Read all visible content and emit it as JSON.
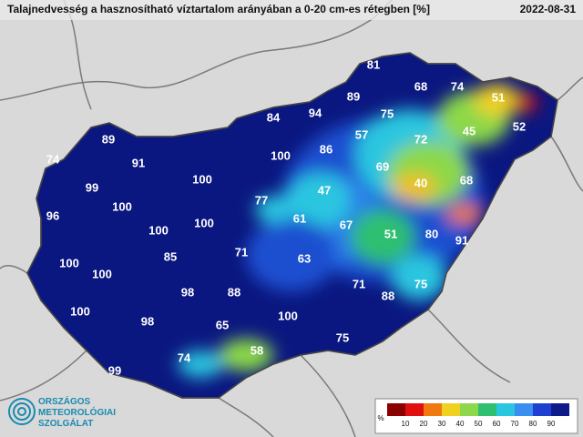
{
  "header": {
    "title": "Talajnedvesség a hasznosítható víztartalom arányában a 0-20 cm-es rétegben [%]",
    "date": "2022-08-31"
  },
  "stations": [
    "81",
    "68",
    "74",
    "51",
    "84",
    "94",
    "89",
    "75",
    "52",
    "89",
    "91",
    "57",
    "72",
    "45",
    "74",
    "100",
    "86",
    "69",
    "99",
    "100",
    "40",
    "68",
    "96",
    "100",
    "47",
    "77",
    "61",
    "67",
    "100",
    "100",
    "51",
    "80",
    "91",
    "71",
    "85",
    "63",
    "100",
    "100",
    "71",
    "75",
    "98",
    "88",
    "88",
    "100",
    "98",
    "65",
    "100",
    "75",
    "58",
    "74",
    "99"
  ],
  "legend": {
    "unit": "%",
    "ticks": [
      "10",
      "20",
      "30",
      "40",
      "50",
      "60",
      "70",
      "80",
      "90"
    ],
    "colors": [
      "#8b0000",
      "#e01010",
      "#f07a10",
      "#f0d020",
      "#8cd84a",
      "#2fbf70",
      "#29c6e0",
      "#3a8ef0",
      "#1f3fd0",
      "#0d1a8a"
    ]
  },
  "logo": [
    "ORSZÁGOS",
    "METEOROLÓGIAI",
    "SZOLGÁLAT"
  ]
}
